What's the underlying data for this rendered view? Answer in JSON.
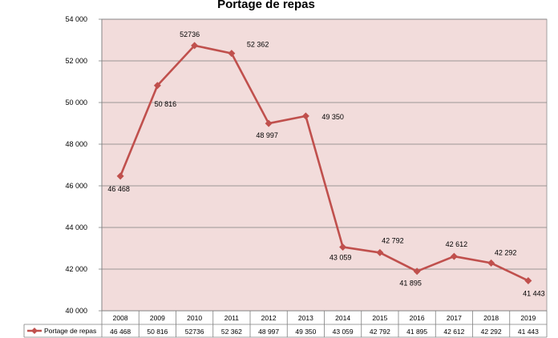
{
  "chart_data": {
    "type": "line",
    "title": "Portage de repas",
    "categories": [
      "2008",
      "2009",
      "2010",
      "2011",
      "2012",
      "2013",
      "2014",
      "2015",
      "2016",
      "2017",
      "2018",
      "2019"
    ],
    "series": [
      {
        "name": "Portage de repas",
        "values": [
          46468,
          50816,
          52736,
          52362,
          48997,
          49350,
          43059,
          42792,
          41895,
          42612,
          42292,
          41443
        ],
        "labels": [
          "46 468",
          "50 816",
          "52736",
          "52 362",
          "48 997",
          "49 350",
          "43 059",
          "42 792",
          "41 895",
          "42 612",
          "42 292",
          "41 443"
        ],
        "color": "#c0504d"
      }
    ],
    "ylim": [
      40000,
      54000
    ],
    "yticks": [
      40000,
      42000,
      44000,
      46000,
      48000,
      50000,
      52000,
      54000
    ],
    "ytick_labels": [
      "40 000",
      "42 000",
      "44 000",
      "46 000",
      "48 000",
      "50 000",
      "52 000",
      "54 000"
    ],
    "grid": true,
    "legend": "data-table-bottom",
    "plot_background": "#f2dcdb",
    "gridline_color": "#7f7f7f"
  }
}
